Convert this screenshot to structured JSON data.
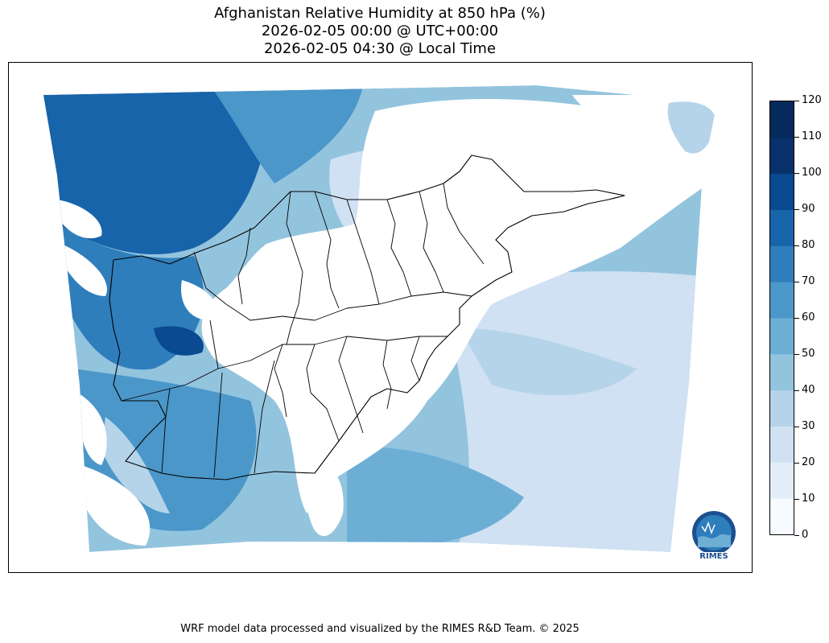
{
  "title": {
    "line1": "Afghanistan Relative Humidity at 850 hPa (%)",
    "line2": "2026-02-05 00:00 @ UTC+00:00",
    "line3": "2026-02-05 04:30 @ Local Time"
  },
  "colorbar": {
    "ticks": [
      "0",
      "10",
      "20",
      "30",
      "40",
      "50",
      "60",
      "70",
      "80",
      "90",
      "100",
      "110",
      "120"
    ],
    "colors": [
      "#f7fbff",
      "#e3eef9",
      "#cfe1f2",
      "#b5d4e9",
      "#93c4de",
      "#6daed5",
      "#4b97c9",
      "#2f7ebc",
      "#1864aa",
      "#0a4a90",
      "#08306b",
      "#062a5c"
    ]
  },
  "logo": {
    "text": "RIMES",
    "icon": "rimes-logo-icon"
  },
  "footer": {
    "text": "WRF model data processed and visualized by the RIMES R&D Team. © 2025"
  }
}
